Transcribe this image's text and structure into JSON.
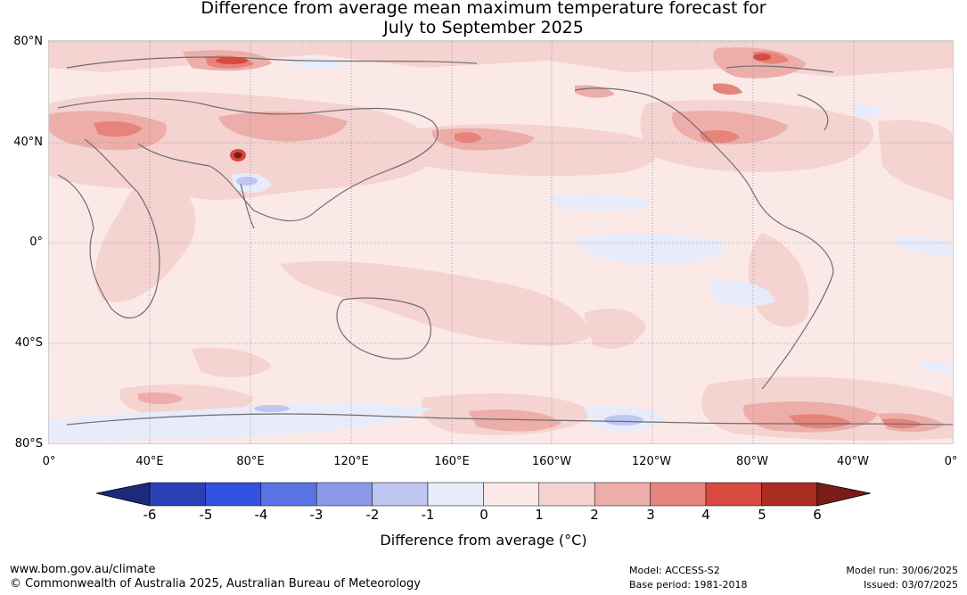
{
  "title": {
    "line1": "Difference from average mean maximum temperature forecast for",
    "line2": "July to September 2025"
  },
  "map": {
    "latitude_labels": [
      "80°N",
      "40°N",
      "0°",
      "40°S",
      "80°S"
    ],
    "longitude_labels": [
      "0°",
      "40°E",
      "80°E",
      "120°E",
      "160°E",
      "160°W",
      "120°W",
      "80°W",
      "40°W",
      "0°"
    ],
    "land_outline_color": "#6e6e6e",
    "gridline_style": "dotted"
  },
  "colorbar": {
    "ticks": [
      "-6",
      "-5",
      "-4",
      "-3",
      "-2",
      "-1",
      "0",
      "1",
      "2",
      "3",
      "4",
      "5",
      "6"
    ],
    "colors": [
      "#1d2a7c",
      "#2b40b5",
      "#3152e0",
      "#5a73e2",
      "#8a9ae8",
      "#bec6f1",
      "#e8ebfa",
      "#fbe9e7",
      "#f5d3d1",
      "#edaea9",
      "#e6847c",
      "#d64a3f",
      "#ab2c22",
      "#7a1b18"
    ],
    "label": "Difference from average (°C)"
  },
  "footer": {
    "website": "www.bom.gov.au/climate",
    "copyright": "© Commonwealth of Australia 2025, Australian Bureau of Meteorology",
    "model": "Model: ACCESS-S2",
    "base_period": "Base period: 1981-2018",
    "model_run": "Model run: 30/06/2025",
    "issued": "Issued: 03/07/2025"
  }
}
